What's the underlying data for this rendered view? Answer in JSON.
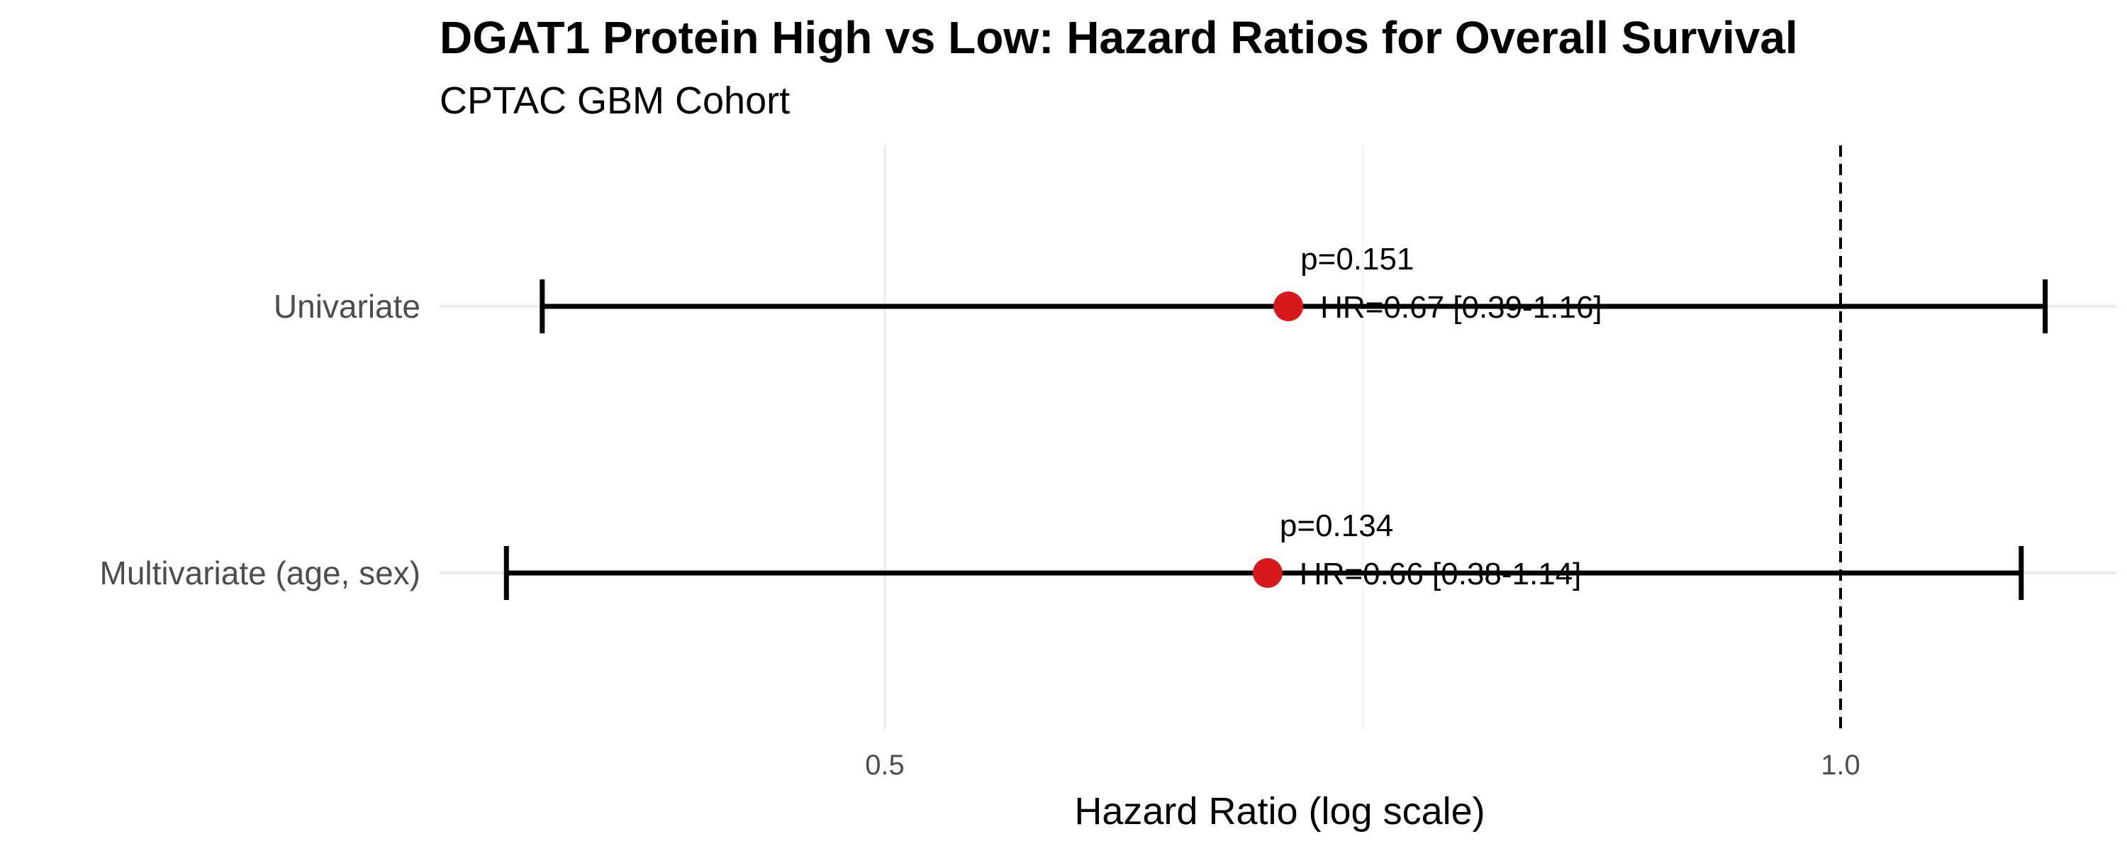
{
  "chart_data": {
    "type": "scatter",
    "subtype": "forest-plot",
    "title": "DGAT1 Protein High vs Low: Hazard Ratios for Overall Survival",
    "subtitle": "CPTAC GBM Cohort",
    "xlabel": "Hazard Ratio (log scale)",
    "ylabel": "",
    "x_scale": "log",
    "xlim": [
      0.3,
      1.17
    ],
    "x_ticks": [
      0.5,
      1.0
    ],
    "x_tick_labels": [
      "0.5",
      "1.0"
    ],
    "x_minor_gridlines": [
      0.7071
    ],
    "reference_line": 1.0,
    "grid": true,
    "point_color": "#d7191c",
    "rows": [
      {
        "label": "Univariate",
        "hr": 0.67,
        "ci_low": 0.39,
        "ci_high": 1.16,
        "hr_label": "HR=0.67 [0.39-1.16]",
        "p_label": "p=0.151"
      },
      {
        "label": "Multivariate (age, sex)",
        "hr": 0.66,
        "ci_low": 0.38,
        "ci_high": 1.14,
        "hr_label": "HR=0.66 [0.38-1.14]",
        "p_label": "p=0.134"
      }
    ]
  }
}
